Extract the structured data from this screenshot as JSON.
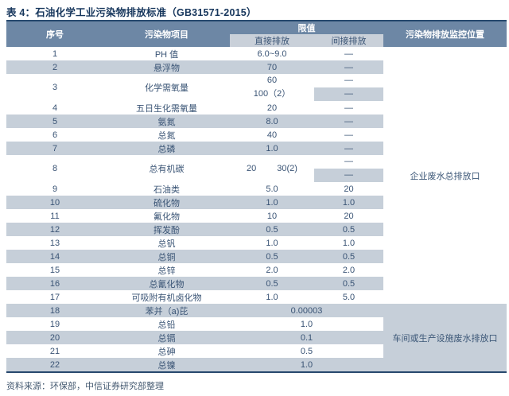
{
  "title": "表 4：石油化学工业污染物排放标准（GB31571-2015）",
  "source": "资料来源：环保部，中信证券研究部整理",
  "colors": {
    "header_bg": "#6d87a5",
    "subheader_bg": "#c9d0d9",
    "row_shade": "#c6cfd9",
    "border_dark": "#27496e",
    "header_text": "#ffffff",
    "cell_text": "#3a5475",
    "title_text": "#16365c"
  },
  "table": {
    "headers": {
      "col_no": "序号",
      "col_item": "污染物项目",
      "col_limit": "限值",
      "col_direct": "直接排放",
      "col_indirect": "间接排放",
      "col_location": "污染物排放监控位置"
    },
    "monitoring_locations": {
      "upper": "企业废水总排放口",
      "lower": "车间或生产设施废水排放口"
    },
    "rows": [
      {
        "no": "1",
        "item": "PH 值",
        "direct": "6.0~9.0",
        "indirect": "—"
      },
      {
        "no": "2",
        "item": "悬浮物",
        "direct": "70",
        "indirect": "—"
      },
      {
        "no": "3",
        "item": "化学需氧量",
        "direct_line1": "60",
        "direct_line2": "100（2）",
        "indirect_line1": "—",
        "indirect_line2": "—"
      },
      {
        "no": "4",
        "item": "五日生化需氧量",
        "direct": "20",
        "indirect": "—"
      },
      {
        "no": "5",
        "item": "氨氮",
        "direct": "8.0",
        "indirect": "—"
      },
      {
        "no": "6",
        "item": "总氮",
        "direct": "40",
        "indirect": "—"
      },
      {
        "no": "7",
        "item": "总磷",
        "direct": "1.0",
        "indirect": "—"
      },
      {
        "no": "8",
        "item": "总有机碳",
        "direct_a": "20",
        "direct_b": "30(2)",
        "indirect_line1": "—",
        "indirect_line2": "—"
      },
      {
        "no": "9",
        "item": "石油类",
        "direct": "5.0",
        "indirect": "20"
      },
      {
        "no": "10",
        "item": "硫化物",
        "direct": "1.0",
        "indirect": "1.0"
      },
      {
        "no": "11",
        "item": "氟化物",
        "direct": "10",
        "indirect": "20"
      },
      {
        "no": "12",
        "item": "挥发酚",
        "direct": "0.5",
        "indirect": "0.5"
      },
      {
        "no": "13",
        "item": "总钒",
        "direct": "1.0",
        "indirect": "1.0"
      },
      {
        "no": "14",
        "item": "总铜",
        "direct": "0.5",
        "indirect": "0.5"
      },
      {
        "no": "15",
        "item": "总锌",
        "direct": "2.0",
        "indirect": "2.0"
      },
      {
        "no": "16",
        "item": "总氰化物",
        "direct": "0.5",
        "indirect": "0.5"
      },
      {
        "no": "17",
        "item": "可吸附有机卤化物",
        "direct": "1.0",
        "indirect": "5.0"
      },
      {
        "no": "18",
        "item": "苯并（a)芘",
        "limit": "0.00003"
      },
      {
        "no": "19",
        "item": "总铅",
        "limit": "1.0"
      },
      {
        "no": "20",
        "item": "总镉",
        "limit": "0.1"
      },
      {
        "no": "21",
        "item": "总砷",
        "limit": "0.5"
      },
      {
        "no": "22",
        "item": "总镍",
        "limit": "1.0"
      }
    ]
  }
}
